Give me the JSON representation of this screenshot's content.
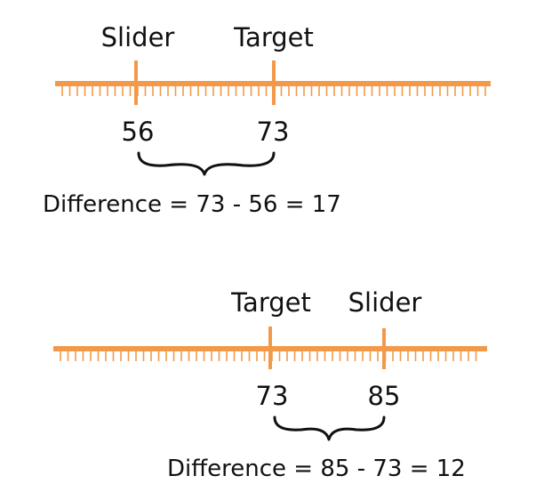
{
  "colors": {
    "scale": "#f2994a",
    "text": "#111111",
    "brace": "#111111"
  },
  "examples": [
    {
      "slider_label": "Slider",
      "target_label": "Target",
      "slider_value": "56",
      "target_value": "73",
      "difference_text": "Difference = 73 - 56 = 17"
    },
    {
      "slider_label": "Slider",
      "target_label": "Target",
      "slider_value": "85",
      "target_value": "73",
      "difference_text": "Difference = 85 - 73 = 12"
    }
  ]
}
